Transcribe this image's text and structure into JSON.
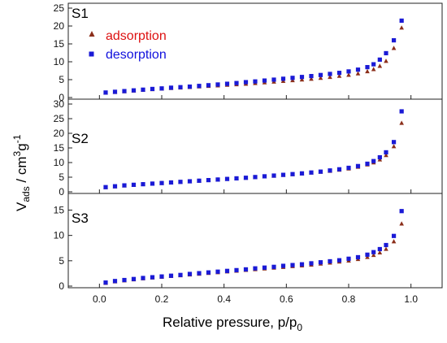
{
  "chart_data": {
    "type": "scatter",
    "xlabel": {
      "main": "Relative pressure, p/p",
      "sub": "0"
    },
    "ylabel": {
      "pre": "V",
      "sub": "ads",
      "mid": " / cm",
      "sup1": "3",
      "post": "g",
      "sup2": "-1"
    },
    "xlim": [
      -0.1,
      1.1
    ],
    "xticks": [
      0.0,
      0.2,
      0.4,
      0.6,
      0.8,
      1.0
    ],
    "xtick_labels": [
      "0.0",
      "0.2",
      "0.4",
      "0.6",
      "0.8",
      "1.0"
    ],
    "grid": false,
    "legend": {
      "placement": "top-left",
      "entries": [
        {
          "label": "adsorption",
          "color": "#cc1111",
          "marker": "triangle"
        },
        {
          "label": "desorption",
          "color": "#1111cc",
          "marker": "square"
        }
      ]
    },
    "colors": {
      "adsorption_marker": "#8b2e1a",
      "desorption_marker": "#1a1ad6",
      "adsorption_text": "#dd1111",
      "desorption_text": "#1111dd"
    },
    "panels": [
      {
        "label": "S1",
        "ylim": [
          0,
          25
        ],
        "yticks": [
          0,
          5,
          10,
          15,
          20,
          25
        ],
        "ytick_labels": [
          "0",
          "5",
          "10",
          "15",
          "20",
          "25"
        ],
        "series": [
          {
            "name": "adsorption",
            "marker": "triangle",
            "x": [
              0.02,
              0.05,
              0.08,
              0.11,
              0.14,
              0.17,
              0.2,
              0.23,
              0.26,
              0.29,
              0.32,
              0.35,
              0.38,
              0.41,
              0.44,
              0.47,
              0.5,
              0.53,
              0.56,
              0.59,
              0.62,
              0.65,
              0.68,
              0.71,
              0.74,
              0.77,
              0.8,
              0.83,
              0.86,
              0.88,
              0.9,
              0.92,
              0.945,
              0.97
            ],
            "y": [
              1.3,
              1.5,
              1.7,
              1.9,
              2.1,
              2.3,
              2.45,
              2.6,
              2.75,
              2.9,
              3.05,
              3.2,
              3.35,
              3.5,
              3.65,
              3.8,
              4.0,
              4.2,
              4.4,
              4.6,
              4.8,
              5.0,
              5.2,
              5.45,
              5.7,
              6.0,
              6.3,
              6.7,
              7.3,
              7.9,
              8.8,
              10.2,
              13.8,
              19.5
            ]
          },
          {
            "name": "desorption",
            "marker": "square",
            "x": [
              0.02,
              0.05,
              0.08,
              0.11,
              0.14,
              0.17,
              0.2,
              0.23,
              0.26,
              0.29,
              0.32,
              0.35,
              0.38,
              0.41,
              0.44,
              0.47,
              0.5,
              0.53,
              0.56,
              0.59,
              0.62,
              0.65,
              0.68,
              0.71,
              0.74,
              0.77,
              0.8,
              0.83,
              0.86,
              0.88,
              0.9,
              0.92,
              0.945,
              0.97
            ],
            "y": [
              1.4,
              1.6,
              1.8,
              2.0,
              2.2,
              2.4,
              2.55,
              2.75,
              2.9,
              3.05,
              3.25,
              3.45,
              3.65,
              3.85,
              4.05,
              4.3,
              4.5,
              4.75,
              5.0,
              5.25,
              5.5,
              5.75,
              6.0,
              6.3,
              6.6,
              6.9,
              7.3,
              7.8,
              8.5,
              9.3,
              10.6,
              12.4,
              16.0,
              21.5
            ]
          }
        ]
      },
      {
        "label": "S2",
        "ylim": [
          0,
          30
        ],
        "yticks": [
          0,
          5,
          10,
          15,
          20,
          25,
          30
        ],
        "ytick_labels": [
          "0",
          "5",
          "10",
          "15",
          "20",
          "25",
          "30"
        ],
        "series": [
          {
            "name": "adsorption",
            "marker": "triangle",
            "x": [
              0.02,
              0.05,
              0.08,
              0.11,
              0.14,
              0.17,
              0.2,
              0.23,
              0.26,
              0.29,
              0.32,
              0.35,
              0.38,
              0.41,
              0.44,
              0.47,
              0.5,
              0.53,
              0.56,
              0.59,
              0.62,
              0.65,
              0.68,
              0.71,
              0.74,
              0.77,
              0.8,
              0.83,
              0.86,
              0.88,
              0.9,
              0.92,
              0.945,
              0.97
            ],
            "y": [
              1.5,
              1.8,
              2.1,
              2.3,
              2.55,
              2.75,
              2.95,
              3.15,
              3.35,
              3.55,
              3.75,
              3.95,
              4.15,
              4.35,
              4.55,
              4.75,
              5.0,
              5.2,
              5.45,
              5.7,
              5.95,
              6.2,
              6.5,
              6.8,
              7.1,
              7.5,
              7.9,
              8.5,
              9.3,
              10.0,
              11.0,
              12.5,
              15.5,
              23.5
            ]
          },
          {
            "name": "desorption",
            "marker": "square",
            "x": [
              0.02,
              0.05,
              0.08,
              0.11,
              0.14,
              0.17,
              0.2,
              0.23,
              0.26,
              0.29,
              0.32,
              0.35,
              0.38,
              0.41,
              0.44,
              0.47,
              0.5,
              0.53,
              0.56,
              0.59,
              0.62,
              0.65,
              0.68,
              0.71,
              0.74,
              0.77,
              0.8,
              0.83,
              0.86,
              0.88,
              0.9,
              0.92,
              0.945,
              0.97
            ],
            "y": [
              1.6,
              1.9,
              2.2,
              2.4,
              2.6,
              2.8,
              3.0,
              3.2,
              3.4,
              3.6,
              3.8,
              4.0,
              4.2,
              4.4,
              4.6,
              4.8,
              5.05,
              5.3,
              5.55,
              5.8,
              6.05,
              6.3,
              6.6,
              6.9,
              7.3,
              7.7,
              8.2,
              8.8,
              9.6,
              10.5,
              11.8,
              13.5,
              17.0,
              27.5
            ]
          }
        ]
      },
      {
        "label": "S3",
        "ylim": [
          0,
          17
        ],
        "yticks": [
          0,
          5,
          10,
          15
        ],
        "ytick_labels": [
          "0",
          "5",
          "10",
          "15"
        ],
        "series": [
          {
            "name": "adsorption",
            "marker": "triangle",
            "x": [
              0.02,
              0.05,
              0.08,
              0.11,
              0.14,
              0.17,
              0.2,
              0.23,
              0.26,
              0.29,
              0.32,
              0.35,
              0.38,
              0.41,
              0.44,
              0.47,
              0.5,
              0.53,
              0.56,
              0.59,
              0.62,
              0.65,
              0.68,
              0.71,
              0.74,
              0.77,
              0.8,
              0.83,
              0.86,
              0.88,
              0.9,
              0.92,
              0.945,
              0.97
            ],
            "y": [
              0.6,
              0.9,
              1.1,
              1.3,
              1.5,
              1.65,
              1.8,
              1.95,
              2.1,
              2.25,
              2.4,
              2.55,
              2.7,
              2.85,
              3.0,
              3.15,
              3.3,
              3.45,
              3.6,
              3.75,
              3.9,
              4.05,
              4.2,
              4.4,
              4.6,
              4.8,
              5.0,
              5.3,
              5.7,
              6.1,
              6.6,
              7.3,
              8.8,
              12.3
            ]
          },
          {
            "name": "desorption",
            "marker": "square",
            "x": [
              0.02,
              0.05,
              0.08,
              0.11,
              0.14,
              0.17,
              0.2,
              0.23,
              0.26,
              0.29,
              0.32,
              0.35,
              0.38,
              0.41,
              0.44,
              0.47,
              0.5,
              0.53,
              0.56,
              0.59,
              0.62,
              0.65,
              0.68,
              0.71,
              0.74,
              0.77,
              0.8,
              0.83,
              0.86,
              0.88,
              0.9,
              0.92,
              0.945,
              0.97
            ],
            "y": [
              0.7,
              1.0,
              1.2,
              1.4,
              1.6,
              1.75,
              1.9,
              2.05,
              2.2,
              2.4,
              2.55,
              2.7,
              2.85,
              3.0,
              3.15,
              3.3,
              3.5,
              3.65,
              3.8,
              4.0,
              4.15,
              4.3,
              4.5,
              4.7,
              4.9,
              5.1,
              5.4,
              5.7,
              6.2,
              6.7,
              7.3,
              8.1,
              9.9,
              14.8
            ]
          }
        ]
      }
    ]
  }
}
